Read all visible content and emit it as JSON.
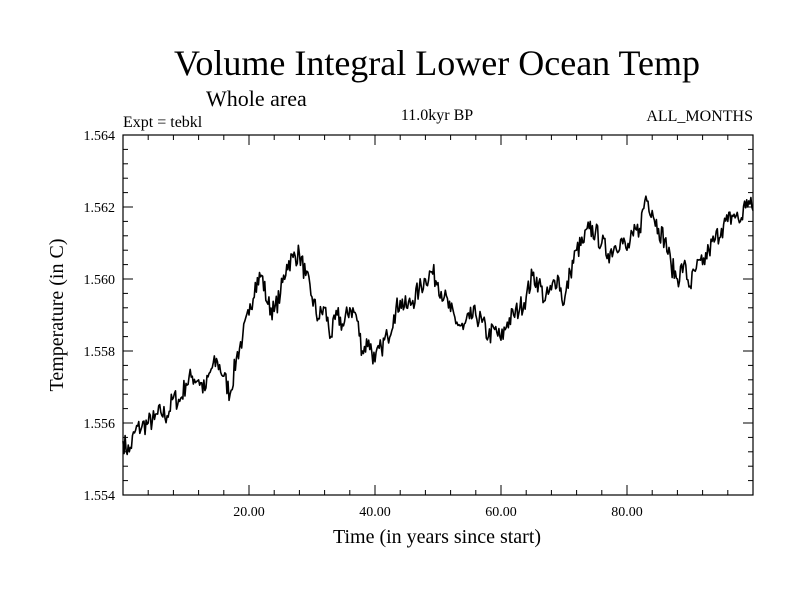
{
  "chart_data": {
    "type": "line",
    "title": "Volume Integral Lower Ocean Temp",
    "subtitle": "Whole area",
    "left_note": "Expt = tebkl",
    "center_note": "11.0kyr BP",
    "right_note": "ALL_MONTHS",
    "xlabel": "Time (in years since start)",
    "ylabel": "Temperature (in C)",
    "xlim": [
      0,
      100
    ],
    "ylim": [
      1.554,
      1.564
    ],
    "x_ticks": [
      {
        "value": 20,
        "label": "20.00"
      },
      {
        "value": 40,
        "label": "40.00"
      },
      {
        "value": 60,
        "label": "60.00"
      },
      {
        "value": 80,
        "label": "80.00"
      }
    ],
    "y_ticks": [
      {
        "value": 1.554,
        "label": "1.554"
      },
      {
        "value": 1.556,
        "label": "1.556"
      },
      {
        "value": 1.558,
        "label": "1.558"
      },
      {
        "value": 1.56,
        "label": "1.560"
      },
      {
        "value": 1.562,
        "label": "1.562"
      },
      {
        "value": 1.564,
        "label": "1.564"
      }
    ],
    "grid": false,
    "series": [
      {
        "name": "Volume Integral Lower Ocean Temp",
        "color": "#000000",
        "x": [
          0,
          1,
          2,
          3,
          4,
          5,
          6,
          7,
          8,
          9,
          10,
          11,
          12,
          13,
          14,
          15,
          16,
          17,
          18,
          19,
          20,
          21,
          22,
          23,
          24,
          25,
          26,
          27,
          28,
          29,
          30,
          31,
          32,
          33,
          34,
          35,
          36,
          37,
          38,
          39,
          40,
          41,
          42,
          43,
          44,
          45,
          46,
          47,
          48,
          49,
          50,
          51,
          52,
          53,
          54,
          55,
          56,
          57,
          58,
          59,
          60,
          61,
          62,
          63,
          64,
          65,
          66,
          67,
          68,
          69,
          70,
          71,
          72,
          73,
          74,
          75,
          76,
          77,
          78,
          79,
          80,
          81,
          82,
          83,
          84,
          85,
          86,
          87,
          88,
          89,
          90,
          91,
          92,
          93,
          94,
          95,
          96,
          97,
          98,
          99,
          100
        ],
        "values": [
          1.5555,
          1.5552,
          1.5558,
          1.5559,
          1.556,
          1.5561,
          1.5563,
          1.5562,
          1.5567,
          1.5566,
          1.5571,
          1.5573,
          1.5572,
          1.5569,
          1.5575,
          1.5577,
          1.5573,
          1.5568,
          1.5578,
          1.5584,
          1.559,
          1.5599,
          1.5601,
          1.5593,
          1.5591,
          1.5596,
          1.5604,
          1.5606,
          1.5607,
          1.5601,
          1.5595,
          1.5589,
          1.5592,
          1.5584,
          1.559,
          1.5587,
          1.5592,
          1.559,
          1.558,
          1.5583,
          1.5577,
          1.5581,
          1.5584,
          1.559,
          1.5594,
          1.5592,
          1.5594,
          1.5597,
          1.56,
          1.5602,
          1.5599,
          1.5595,
          1.5591,
          1.5588,
          1.5586,
          1.5589,
          1.559,
          1.5588,
          1.5584,
          1.5586,
          1.5583,
          1.5588,
          1.559,
          1.5592,
          1.5595,
          1.5601,
          1.5599,
          1.5594,
          1.5597,
          1.5601,
          1.5593,
          1.5602,
          1.5608,
          1.561,
          1.5614,
          1.5613,
          1.561,
          1.5607,
          1.5609,
          1.5611,
          1.5608,
          1.5612,
          1.5614,
          1.5623,
          1.5619,
          1.5614,
          1.5611,
          1.5604,
          1.56,
          1.5604,
          1.5598,
          1.5603,
          1.5604,
          1.5608,
          1.5611,
          1.5614,
          1.5616,
          1.5618,
          1.5616,
          1.5622,
          1.5619
        ]
      }
    ]
  }
}
